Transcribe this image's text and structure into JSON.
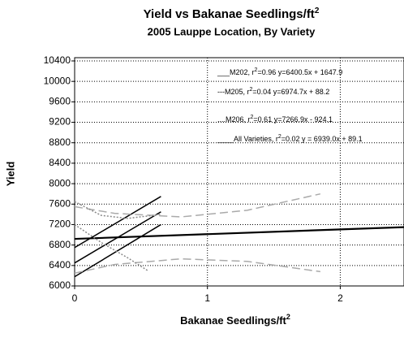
{
  "chart_data": {
    "type": "line",
    "title": {
      "text": "Yield vs Bakanae Seedlings/ft",
      "sup": "2"
    },
    "subtitle": "2005 Lauppe Location, By Variety",
    "x_label": {
      "text": "Bakanae Seedlings/ft",
      "sup": "2"
    },
    "y_label": "Yield",
    "xlim": [
      0,
      2.48
    ],
    "xticks": [
      0,
      1,
      2
    ],
    "ylim": [
      6000,
      10400
    ],
    "yticks": [
      6000,
      6400,
      6800,
      7200,
      7600,
      8000,
      8400,
      8800,
      9200,
      9600,
      10000,
      10400
    ],
    "grid": true,
    "annotations": [
      {
        "text": "___M202, r",
        "sup": "2",
        "rest": "=0.96  y=6400.5x + 1647.9"
      },
      {
        "text": "---M205, r",
        "sup": "2",
        "rest": "=0.04  y=6974.7x + 88.2"
      },
      {
        "text": "....M206, r",
        "sup": "2",
        "rest": "=0.61  y=7266.9x - 924.1"
      },
      {
        "text": "____All Varieties, r",
        "sup": "2",
        "rest": "=0.02  y = 6939.0x + 89.1"
      }
    ],
    "series": [
      {
        "color": "#000000",
        "style": "solid",
        "x": [
          0,
          0.65
        ],
        "values": [
          6180,
          7200
        ]
      },
      {
        "color": "#000000",
        "style": "solid",
        "x": [
          0,
          0.65
        ],
        "values": [
          6450,
          7450
        ]
      },
      {
        "color": "#000000",
        "style": "solid",
        "x": [
          0,
          0.65
        ],
        "values": [
          6750,
          7750
        ]
      },
      {
        "color": "#000000",
        "style": "thick",
        "x": [
          0,
          2.48
        ],
        "values": [
          6920,
          7150
        ]
      },
      {
        "color": "#aaaaaa",
        "style": "dashed",
        "x": [
          0,
          0.3,
          0.8,
          1.3,
          1.85
        ],
        "values": [
          7550,
          7420,
          7350,
          7480,
          7800
        ]
      },
      {
        "color": "#aaaaaa",
        "style": "dashed",
        "x": [
          0,
          0.3,
          0.8,
          1.3,
          1.85
        ],
        "values": [
          6250,
          6420,
          6530,
          6480,
          6280
        ]
      },
      {
        "color": "#888888",
        "style": "dotted",
        "x": [
          0,
          0.2,
          0.4,
          0.65
        ],
        "values": [
          7650,
          7380,
          7320,
          7400
        ]
      },
      {
        "color": "#888888",
        "style": "dotted",
        "x": [
          0,
          0.2,
          0.4,
          0.55
        ],
        "values": [
          7200,
          6850,
          6550,
          6300
        ]
      }
    ]
  }
}
